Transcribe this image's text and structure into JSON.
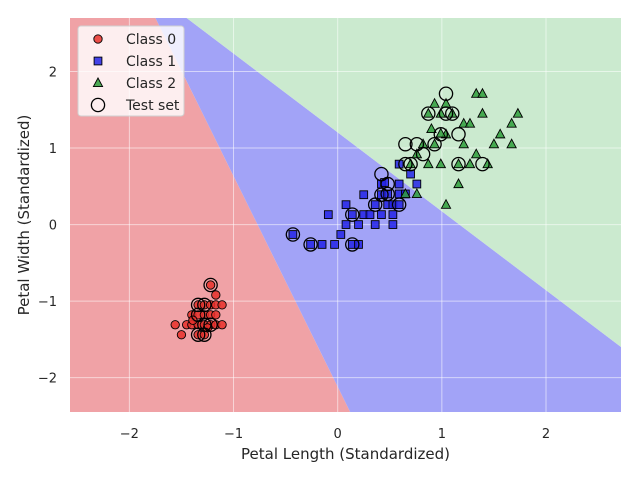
{
  "chart_data": {
    "type": "scatter",
    "title": "",
    "xlabel": "Petal Length (Standardized)",
    "ylabel": "Petal Width (Standardized)",
    "xlim": [
      -2.57,
      2.72
    ],
    "ylim": [
      -2.45,
      2.7
    ],
    "xticks": [
      -2,
      -1,
      0,
      1,
      2
    ],
    "yticks": [
      -2,
      -1,
      0,
      1,
      2
    ],
    "xtick_labels": [
      "−2",
      "−1",
      "0",
      "1",
      "2"
    ],
    "ytick_labels": [
      "−2",
      "−1",
      "0",
      "1",
      "2"
    ],
    "grid": true,
    "legend_position": "top-left",
    "decision_regions": {
      "class_0_1_boundary": [
        [
          -1.75,
          2.7
        ],
        [
          0.12,
          -2.45
        ]
      ],
      "class_1_2_boundary": [
        [
          -1.45,
          2.7
        ],
        [
          2.72,
          -1.6
        ]
      ],
      "colors": {
        "class_0": "#f0a2a6",
        "class_1": "#a2a3f7",
        "class_2": "#cbeacf"
      }
    },
    "series": [
      {
        "name": "Class 0",
        "marker": "circle",
        "color": "#e8302a",
        "points": [
          [
            -1.56,
            -1.31
          ],
          [
            -1.5,
            -1.44
          ],
          [
            -1.45,
            -1.31
          ],
          [
            -1.4,
            -1.31
          ],
          [
            -1.4,
            -1.18
          ],
          [
            -1.34,
            -1.05
          ],
          [
            -1.34,
            -1.18
          ],
          [
            -1.34,
            -1.31
          ],
          [
            -1.34,
            -1.44
          ],
          [
            -1.28,
            -1.05
          ],
          [
            -1.28,
            -1.18
          ],
          [
            -1.28,
            -1.31
          ],
          [
            -1.28,
            -1.44
          ],
          [
            -1.22,
            -0.79
          ],
          [
            -1.22,
            -1.05
          ],
          [
            -1.22,
            -1.18
          ],
          [
            -1.22,
            -1.31
          ],
          [
            -1.17,
            -0.92
          ],
          [
            -1.17,
            -1.05
          ],
          [
            -1.17,
            -1.18
          ],
          [
            -1.17,
            -1.31
          ],
          [
            -1.11,
            -1.05
          ],
          [
            -1.11,
            -1.31
          ],
          [
            -1.39,
            -1.25
          ],
          [
            -1.25,
            -1.35
          ]
        ]
      },
      {
        "name": "Class 1",
        "marker": "square",
        "color": "#2323e6",
        "points": [
          [
            -0.43,
            -0.13
          ],
          [
            -0.26,
            -0.26
          ],
          [
            -0.15,
            -0.26
          ],
          [
            -0.09,
            0.13
          ],
          [
            -0.03,
            -0.26
          ],
          [
            0.03,
            -0.13
          ],
          [
            0.08,
            0.0
          ],
          [
            0.08,
            0.26
          ],
          [
            0.14,
            -0.26
          ],
          [
            0.14,
            0.13
          ],
          [
            0.2,
            -0.26
          ],
          [
            0.2,
            0.0
          ],
          [
            0.25,
            0.13
          ],
          [
            0.25,
            0.39
          ],
          [
            0.31,
            0.13
          ],
          [
            0.36,
            0.0
          ],
          [
            0.36,
            0.26
          ],
          [
            0.42,
            0.13
          ],
          [
            0.42,
            0.39
          ],
          [
            0.42,
            0.53
          ],
          [
            0.48,
            0.26
          ],
          [
            0.48,
            0.4
          ],
          [
            0.53,
            0.0
          ],
          [
            0.53,
            0.13
          ],
          [
            0.53,
            0.26
          ],
          [
            0.59,
            0.26
          ],
          [
            0.59,
            0.4
          ],
          [
            0.59,
            0.53
          ],
          [
            0.65,
            0.4
          ],
          [
            0.7,
            0.66
          ],
          [
            0.76,
            0.53
          ],
          [
            0.59,
            0.79
          ],
          [
            0.45,
            0.55
          ]
        ]
      },
      {
        "name": "Class 2",
        "marker": "triangle",
        "color": "#2e9e3a",
        "points": [
          [
            0.65,
            0.4
          ],
          [
            0.7,
            0.79
          ],
          [
            0.76,
            0.4
          ],
          [
            0.76,
            0.92
          ],
          [
            0.82,
            1.05
          ],
          [
            0.87,
            0.79
          ],
          [
            0.87,
            1.45
          ],
          [
            0.93,
            1.05
          ],
          [
            0.93,
            1.58
          ],
          [
            0.99,
            0.79
          ],
          [
            0.99,
            1.45
          ],
          [
            1.04,
            0.26
          ],
          [
            1.04,
            1.58
          ],
          [
            1.04,
            1.18
          ],
          [
            1.1,
            1.45
          ],
          [
            1.16,
            0.79
          ],
          [
            1.16,
            0.53
          ],
          [
            1.21,
            1.32
          ],
          [
            1.21,
            1.05
          ],
          [
            1.27,
            1.32
          ],
          [
            1.27,
            0.79
          ],
          [
            1.33,
            1.71
          ],
          [
            1.33,
            0.92
          ],
          [
            1.39,
            1.71
          ],
          [
            1.39,
            1.45
          ],
          [
            1.44,
            0.79
          ],
          [
            1.5,
            1.05
          ],
          [
            1.56,
            1.18
          ],
          [
            1.67,
            1.05
          ],
          [
            1.67,
            1.32
          ],
          [
            1.73,
            1.45
          ],
          [
            0.99,
            1.19
          ],
          [
            0.9,
            1.25
          ]
        ]
      },
      {
        "name": "Test set",
        "marker": "open-circle",
        "color": "#000000",
        "points": [
          [
            -1.22,
            -0.79
          ],
          [
            -1.34,
            -1.05
          ],
          [
            -1.28,
            -1.05
          ],
          [
            -1.34,
            -1.18
          ],
          [
            -1.28,
            -1.31
          ],
          [
            -1.34,
            -1.44
          ],
          [
            -1.22,
            -1.31
          ],
          [
            -1.28,
            -1.44
          ],
          [
            -0.43,
            -0.13
          ],
          [
            -0.26,
            -0.26
          ],
          [
            0.14,
            -0.26
          ],
          [
            0.14,
            0.13
          ],
          [
            0.36,
            0.26
          ],
          [
            0.42,
            0.39
          ],
          [
            0.48,
            0.53
          ],
          [
            0.59,
            0.26
          ],
          [
            0.42,
            0.66
          ],
          [
            0.48,
            0.4
          ],
          [
            0.65,
            0.79
          ],
          [
            0.65,
            1.05
          ],
          [
            0.7,
            0.79
          ],
          [
            0.76,
            1.05
          ],
          [
            0.82,
            0.92
          ],
          [
            0.87,
            1.45
          ],
          [
            0.93,
            1.05
          ],
          [
            0.99,
            1.18
          ],
          [
            1.04,
            1.45
          ],
          [
            1.04,
            1.71
          ],
          [
            1.1,
            1.45
          ],
          [
            1.16,
            0.79
          ],
          [
            1.16,
            1.18
          ],
          [
            1.39,
            0.79
          ]
        ]
      }
    ]
  }
}
